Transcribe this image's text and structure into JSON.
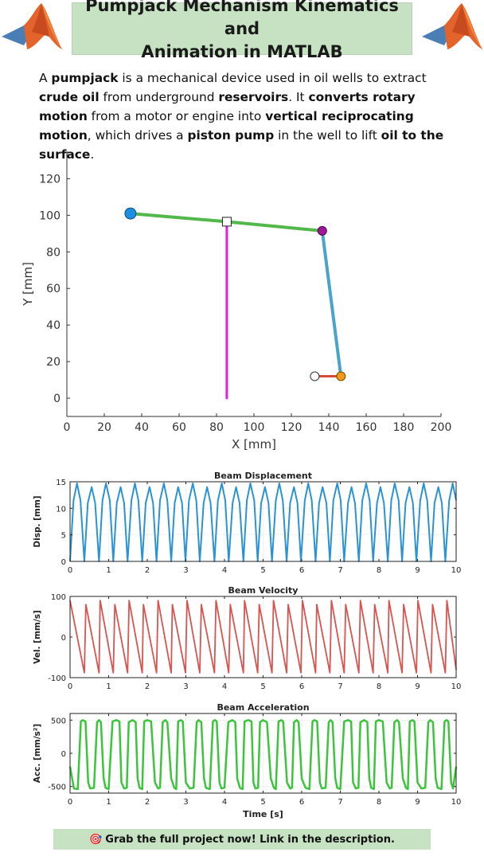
{
  "header": {
    "title_line1": "Pumpjack Mechanism Kinematics and",
    "title_line2": "Animation in MATLAB"
  },
  "intro": {
    "p1": "A ",
    "b1": "pumpjack",
    "p2": " is a mechanical device used in oil wells to extract ",
    "b2": "crude oil",
    "p3": " from underground ",
    "b3": "reservoirs",
    "p4": ". It ",
    "b4": "converts rotary motion",
    "p5": " from a motor or engine into ",
    "b5": "vertical reciprocating motion",
    "p6": ", which drives a ",
    "b6": "piston pump",
    "p7": " in the well to lift ",
    "b7": "oil to the surface",
    "p8": "."
  },
  "footer": {
    "icon": "🎯",
    "text": "Grab the full project now! Link in the description."
  },
  "colors": {
    "beam": "#52b84a",
    "pump_rod": "#e020d8",
    "pitman": "#4aa3c8",
    "crank": "#d94a3a",
    "pivot_left": "#1e8fe0",
    "beam_joint": "#a0189a",
    "crank_pin": "#f09a1a",
    "displacement": "#2a93d5",
    "velocity": "#d9534f",
    "acceleration": "#3cc43c"
  },
  "chart_data": [
    {
      "type": "line",
      "title": "",
      "xlabel": "X [mm]",
      "ylabel": "Y [mm]",
      "xlim": [
        0,
        200
      ],
      "ylim": [
        -10,
        135
      ],
      "xticks": [
        0,
        20,
        40,
        60,
        80,
        100,
        120,
        140,
        160,
        180,
        200
      ],
      "yticks": [
        0,
        20,
        40,
        60,
        80,
        100,
        120
      ],
      "grid": false,
      "series": [
        {
          "x": [
            34,
            85.5,
            136.5
          ],
          "y": [
            101,
            96.5,
            91.5
          ]
        },
        {
          "x": [
            85.5,
            85.5
          ],
          "y": [
            96.5,
            0
          ]
        },
        {
          "x": [
            136.5,
            146.5
          ],
          "y": [
            91.5,
            12
          ]
        },
        {
          "x": [
            132.5,
            146.5
          ],
          "y": [
            12,
            12
          ]
        }
      ],
      "points": [
        {
          "x": 34,
          "y": 101
        },
        {
          "x": 85.5,
          "y": 96.5
        },
        {
          "x": 136.5,
          "y": 91.5
        },
        {
          "x": 146.5,
          "y": 12
        },
        {
          "x": 132.5,
          "y": 12
        }
      ]
    },
    {
      "type": "line",
      "title": "Beam Displacement",
      "xlabel": "",
      "ylabel": "Disp. [mm]",
      "xlim": [
        0,
        10
      ],
      "ylim": [
        0,
        15
      ],
      "xticks": [
        0,
        1,
        2,
        3,
        4,
        5,
        6,
        7,
        8,
        9,
        10
      ],
      "yticks": [
        0,
        5,
        10,
        15
      ],
      "grid": true,
      "series": [
        {
          "x": [
            0.0,
            0.09,
            0.18,
            0.27,
            0.37,
            0.46,
            0.56,
            0.65,
            0.75,
            0.84,
            0.93,
            1.03,
            1.12,
            1.21,
            1.31,
            1.4,
            1.49,
            1.59,
            1.68,
            1.77,
            1.87,
            1.96,
            2.06,
            2.15,
            2.24,
            2.33,
            2.43,
            2.52,
            2.62,
            2.71,
            2.8,
            2.9,
            2.99,
            3.08,
            3.18,
            3.27,
            3.36,
            3.46,
            3.55,
            3.64,
            3.74,
            3.83,
            3.93,
            4.02,
            4.11,
            4.21,
            4.3,
            4.39,
            4.49,
            4.58,
            4.67,
            4.77,
            4.86,
            4.95,
            5.05,
            5.14,
            5.23,
            5.33,
            5.42,
            5.51,
            5.61,
            5.7,
            5.8,
            5.89,
            5.98,
            6.08,
            6.17,
            6.26,
            6.36,
            6.45,
            6.54,
            6.64,
            6.73,
            6.82,
            6.92,
            7.01,
            7.1,
            7.2,
            7.29,
            7.38,
            7.48,
            7.57,
            7.67,
            7.76,
            7.85,
            7.95,
            8.04,
            8.13,
            8.23,
            8.32,
            8.41,
            8.51,
            8.6,
            8.69,
            8.79,
            8.88,
            8.97,
            9.07,
            9.16,
            9.25,
            9.35,
            9.44,
            9.54,
            9.63,
            9.72,
            9.82,
            9.91,
            10.0
          ],
          "y": [
            0,
            11.5,
            14.7,
            11.5,
            0,
            11.0,
            14.0,
            11.0,
            0,
            11.5,
            14.7,
            11.5,
            0,
            11.0,
            14.0,
            11.0,
            0,
            11.5,
            14.7,
            11.5,
            0,
            11.0,
            14.0,
            11.0,
            0,
            11.5,
            14.7,
            11.5,
            0,
            11.0,
            14.0,
            11.0,
            0,
            11.5,
            14.7,
            11.5,
            0,
            11.0,
            14.0,
            11.0,
            0,
            11.5,
            14.7,
            11.5,
            0,
            11.0,
            14.0,
            11.0,
            0,
            11.5,
            14.7,
            11.5,
            0,
            11.0,
            14.0,
            11.0,
            0,
            11.5,
            14.7,
            11.5,
            0,
            11.0,
            14.0,
            11.0,
            0,
            11.5,
            14.7,
            11.5,
            0,
            11.0,
            14.0,
            11.0,
            0,
            11.5,
            14.7,
            11.5,
            0,
            11.0,
            14.0,
            11.0,
            0,
            11.5,
            14.7,
            11.5,
            0,
            11.0,
            14.0,
            11.0,
            0,
            11.5,
            14.7,
            11.5,
            0,
            11.0,
            14.0,
            11.0,
            0,
            11.5,
            14.7,
            11.5,
            0,
            11.0,
            14.0,
            11.0,
            0,
            11.5,
            14.7,
            11.5
          ]
        }
      ]
    },
    {
      "type": "line",
      "title": "Beam Velocity",
      "xlabel": "",
      "ylabel": "Vel. [mm/s]",
      "xlim": [
        0,
        10
      ],
      "ylim": [
        -100,
        100
      ],
      "xticks": [
        0,
        1,
        2,
        3,
        4,
        5,
        6,
        7,
        8,
        9,
        10
      ],
      "yticks": [
        -100,
        0,
        100
      ],
      "grid": true,
      "series": [
        {
          "x": [
            0.0,
            0.37,
            0.41,
            0.75,
            0.78,
            1.12,
            1.16,
            1.49,
            1.53,
            1.87,
            1.9,
            2.24,
            2.28,
            2.62,
            2.65,
            2.99,
            3.03,
            3.36,
            3.4,
            3.74,
            3.78,
            4.11,
            4.15,
            4.49,
            4.52,
            4.86,
            4.9,
            5.23,
            5.27,
            5.61,
            5.65,
            5.98,
            6.02,
            6.36,
            6.39,
            6.73,
            6.77,
            7.1,
            7.14,
            7.48,
            7.52,
            7.85,
            7.89,
            8.23,
            8.26,
            8.6,
            8.64,
            8.97,
            9.01,
            9.35,
            9.39,
            9.72,
            9.76,
            10.0
          ],
          "y": [
            90,
            -88,
            80,
            -88,
            90,
            -88,
            80,
            -88,
            90,
            -88,
            80,
            -88,
            90,
            -88,
            80,
            -88,
            90,
            -88,
            80,
            -88,
            90,
            -88,
            80,
            -88,
            90,
            -88,
            80,
            -88,
            90,
            -88,
            80,
            -88,
            90,
            -88,
            80,
            -88,
            90,
            -88,
            80,
            -88,
            90,
            -88,
            80,
            -88,
            90,
            -88,
            80,
            -88,
            90,
            -88,
            80,
            -88,
            90,
            -80
          ]
        }
      ]
    },
    {
      "type": "line",
      "title": "Beam Acceleration",
      "xlabel": "Time [s]",
      "ylabel": "Acc. [mm/s²]",
      "xlim": [
        0,
        10
      ],
      "ylim": [
        -600,
        600
      ],
      "xticks": [
        0,
        1,
        2,
        3,
        4,
        5,
        6,
        7,
        8,
        9,
        10
      ],
      "yticks": [
        -500,
        0,
        500
      ],
      "grid": true,
      "series": [
        {
          "x": [
            0.0,
            0.1,
            0.2,
            0.28,
            0.33,
            0.4,
            0.47,
            0.52,
            0.62,
            0.7,
            0.75,
            0.8,
            0.87,
            0.92,
            1.0,
            1.1,
            1.2,
            1.28,
            1.33,
            1.4,
            1.47,
            1.52,
            1.62,
            1.7,
            1.75,
            1.8,
            1.87,
            1.92,
            2.0,
            2.1,
            2.2,
            2.28,
            2.33,
            2.4,
            2.47,
            2.52,
            2.62,
            2.7,
            2.75,
            2.8,
            2.87,
            2.92,
            3.0,
            3.1,
            3.2,
            3.28,
            3.33,
            3.4,
            3.47,
            3.52,
            3.62,
            3.7,
            3.75,
            3.8,
            3.87,
            3.92,
            4.0,
            4.1,
            4.2,
            4.28,
            4.33,
            4.4,
            4.47,
            4.52,
            4.62,
            4.7,
            4.75,
            4.8,
            4.87,
            4.92,
            5.0,
            5.1,
            5.2,
            5.28,
            5.33,
            5.4,
            5.47,
            5.52,
            5.62,
            5.7,
            5.75,
            5.8,
            5.87,
            5.92,
            6.0,
            6.1,
            6.2,
            6.28,
            6.33,
            6.4,
            6.47,
            6.52,
            6.62,
            6.7,
            6.75,
            6.8,
            6.87,
            6.92,
            7.0,
            7.1,
            7.2,
            7.28,
            7.33,
            7.4,
            7.47,
            7.52,
            7.62,
            7.7,
            7.75,
            7.8,
            7.87,
            7.92,
            8.0,
            8.1,
            8.2,
            8.28,
            8.33,
            8.4,
            8.47,
            8.52,
            8.62,
            8.7,
            8.75,
            8.8,
            8.87,
            8.92,
            9.0,
            9.1,
            9.2,
            9.28,
            9.33,
            9.4,
            9.47,
            9.52,
            9.62,
            9.7,
            9.75,
            9.8,
            9.87,
            9.92,
            10.0
          ],
          "y": [
            -200,
            -530,
            -540,
            480,
            500,
            480,
            -440,
            -530,
            -520,
            470,
            500,
            470,
            -380,
            -520,
            -540,
            480,
            500,
            480,
            -440,
            -530,
            -520,
            470,
            500,
            470,
            -380,
            -520,
            -540,
            480,
            500,
            480,
            -440,
            -530,
            -520,
            470,
            500,
            470,
            -380,
            -520,
            -540,
            480,
            500,
            480,
            -440,
            -530,
            -520,
            470,
            500,
            470,
            -380,
            -520,
            -540,
            480,
            500,
            480,
            -440,
            -530,
            -520,
            470,
            500,
            470,
            -380,
            -520,
            -540,
            480,
            500,
            480,
            -440,
            -530,
            -520,
            470,
            500,
            470,
            -380,
            -520,
            -540,
            480,
            500,
            480,
            -440,
            -530,
            -520,
            470,
            500,
            470,
            -380,
            -520,
            -540,
            480,
            500,
            480,
            -440,
            -530,
            -520,
            470,
            500,
            470,
            -380,
            -520,
            -540,
            480,
            500,
            480,
            -440,
            -530,
            -520,
            470,
            500,
            470,
            -380,
            -520,
            -540,
            480,
            500,
            480,
            -440,
            -530,
            -520,
            470,
            500,
            470,
            -380,
            -520,
            -540,
            480,
            500,
            480,
            -440,
            -530,
            -520,
            470,
            500,
            470,
            -380,
            -520,
            -540,
            480,
            500,
            480,
            -440,
            -530,
            -200
          ]
        }
      ]
    }
  ]
}
